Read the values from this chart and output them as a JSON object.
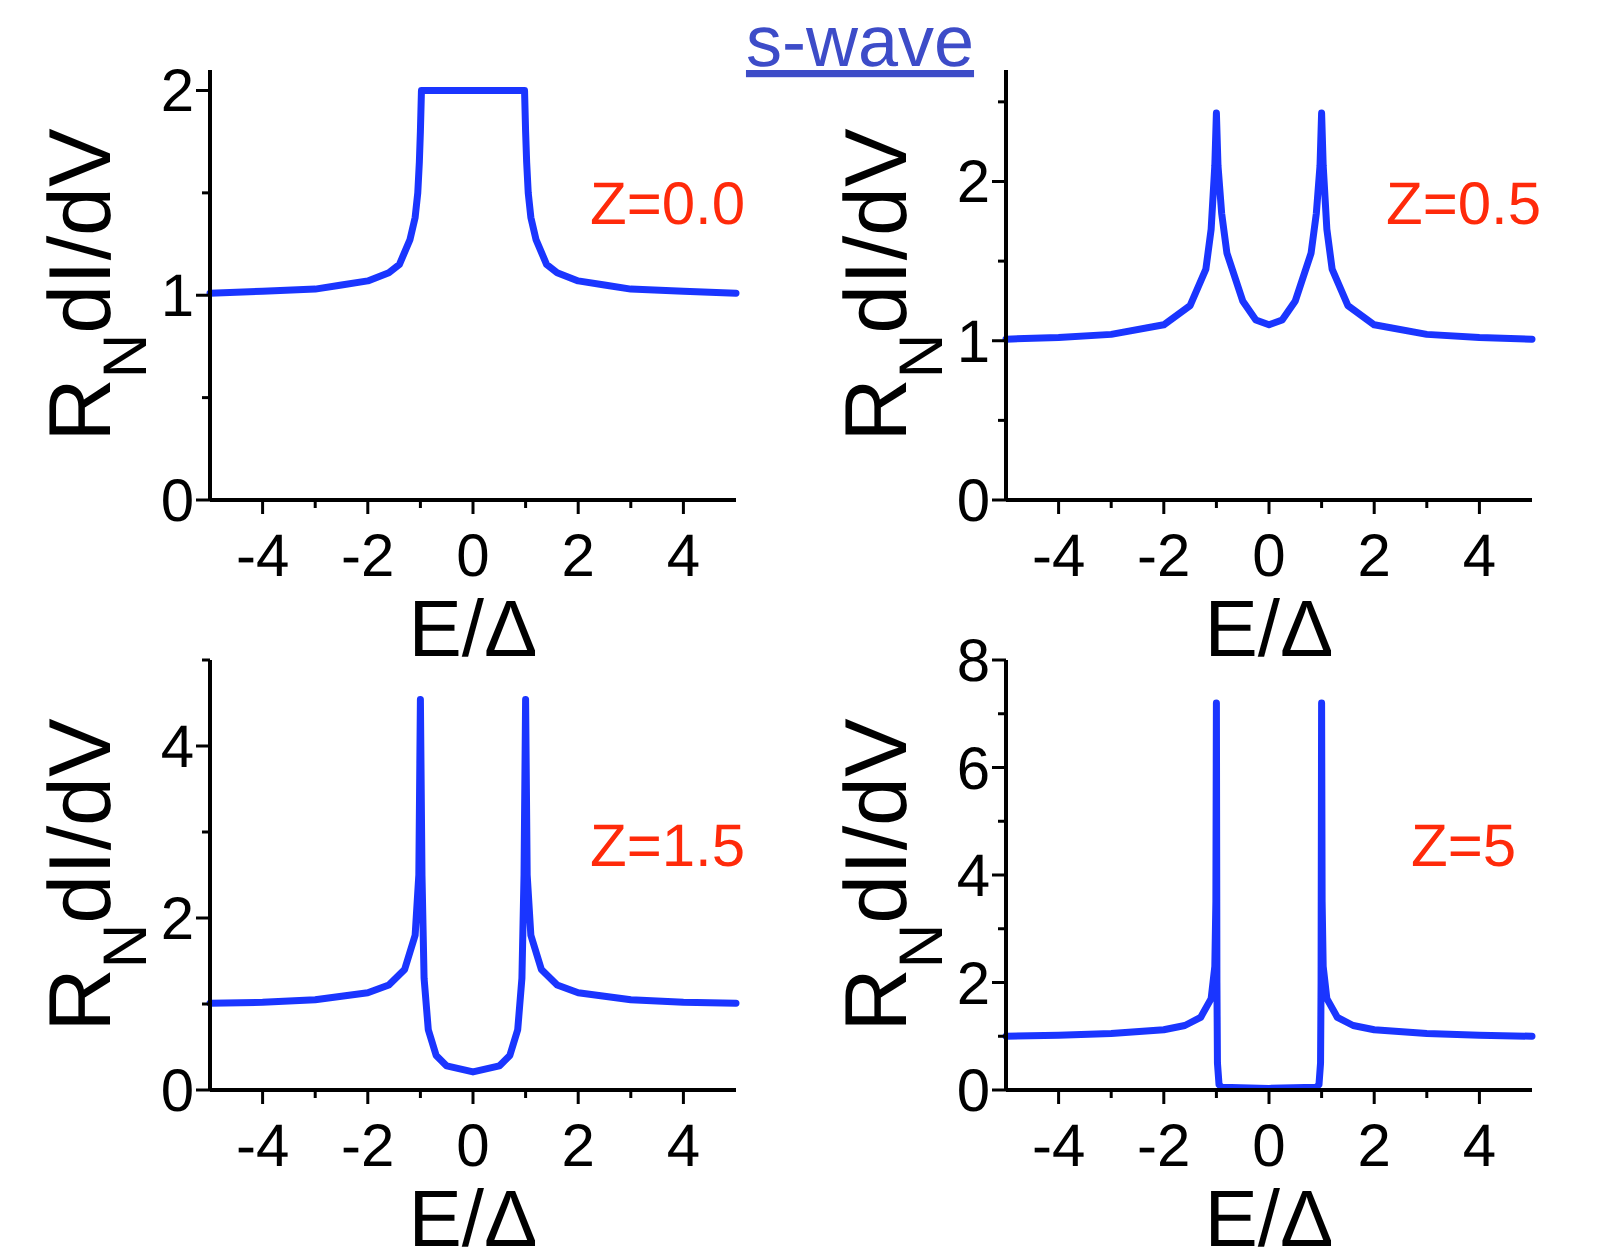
{
  "chart_data": [
    {
      "type": "line",
      "title": "s-wave",
      "xlabel": "E/Δ",
      "ylabel": "R$_{N}$dI/dV",
      "annotations": [
        "Z=0.0"
      ],
      "xlim": [
        -5,
        5
      ],
      "ylim": [
        0,
        2.1
      ],
      "xticks": [
        -4,
        {
          "value": -3,
          "label": null
        },
        -2,
        {
          "value": -1,
          "label": null
        },
        0,
        {
          "value": 1,
          "label": null
        },
        2,
        {
          "value": 3,
          "label": null
        },
        4
      ],
      "yticks": [
        0,
        {
          "value": 0.5,
          "label": null
        },
        1,
        {
          "value": 1.5,
          "label": null
        },
        2
      ],
      "x": [
        -5,
        -4,
        -3,
        -2.5,
        -2,
        -1.6,
        -1.4,
        -1.2,
        -1.1,
        -1.05,
        -1.02,
        -1,
        -0.98,
        0,
        0.98,
        1,
        1.02,
        1.05,
        1.1,
        1.2,
        1.4,
        1.6,
        2,
        2.5,
        3,
        4,
        5
      ],
      "series": [
        {
          "color": "#1a35ff",
          "values": [
            1.01,
            1.02,
            1.03,
            1.05,
            1.07,
            1.11,
            1.15,
            1.27,
            1.38,
            1.5,
            1.65,
            1.8,
            2,
            2,
            2,
            1.8,
            1.65,
            1.5,
            1.38,
            1.27,
            1.15,
            1.11,
            1.07,
            1.05,
            1.03,
            1.02,
            1.01
          ]
        }
      ]
    },
    {
      "type": "line",
      "xlabel": "E/Δ",
      "ylabel": "R$_{N}$dI/dV",
      "annotations": [
        "Z=0.5"
      ],
      "xlim": [
        -5,
        5
      ],
      "ylim": [
        0,
        2.7
      ],
      "xticks": [
        -4,
        {
          "value": -3,
          "label": null
        },
        -2,
        {
          "value": -1,
          "label": null
        },
        0,
        {
          "value": 1,
          "label": null
        },
        2,
        {
          "value": 3,
          "label": null
        },
        4
      ],
      "yticks": [
        0,
        {
          "value": 0.5,
          "label": null
        },
        1,
        {
          "value": 1.5,
          "label": null
        },
        2,
        {
          "value": 2.5,
          "label": null
        }
      ],
      "x": [
        -5,
        -4,
        -3,
        -2,
        -1.5,
        -1.2,
        -1.1,
        -1.03,
        -1,
        -0.97,
        -0.9,
        -0.8,
        -0.5,
        -0.25,
        0,
        0.25,
        0.5,
        0.8,
        0.9,
        0.97,
        1,
        1.03,
        1.1,
        1.2,
        1.5,
        2,
        3,
        4,
        5
      ],
      "series": [
        {
          "color": "#1a35ff",
          "values": [
            1.01,
            1.02,
            1.04,
            1.1,
            1.22,
            1.45,
            1.7,
            2.1,
            2.43,
            2.1,
            1.8,
            1.55,
            1.25,
            1.13,
            1.1,
            1.13,
            1.25,
            1.55,
            1.8,
            2.1,
            2.43,
            2.1,
            1.7,
            1.45,
            1.22,
            1.1,
            1.04,
            1.02,
            1.01
          ]
        }
      ]
    },
    {
      "type": "line",
      "xlabel": "E/Δ",
      "ylabel": "R$_{N}$dI/dV",
      "annotations": [
        "Z=1.5"
      ],
      "xlim": [
        -5,
        5
      ],
      "ylim": [
        0,
        5
      ],
      "xticks": [
        -4,
        {
          "value": -3,
          "label": null
        },
        -2,
        {
          "value": -1,
          "label": null
        },
        0,
        {
          "value": 1,
          "label": null
        },
        2,
        {
          "value": 3,
          "label": null
        },
        4
      ],
      "yticks": [
        0,
        {
          "value": 1,
          "label": null
        },
        2,
        {
          "value": 3,
          "label": null
        },
        4,
        {
          "value": 5,
          "label": null
        }
      ],
      "x": [
        -5,
        -4,
        -3,
        -2,
        -1.6,
        -1.3,
        -1.1,
        -1.03,
        -1,
        -0.97,
        -0.93,
        -0.85,
        -0.7,
        -0.5,
        0,
        0.5,
        0.7,
        0.85,
        0.93,
        0.97,
        1,
        1.03,
        1.1,
        1.3,
        1.6,
        2,
        3,
        4,
        5
      ],
      "series": [
        {
          "color": "#1a35ff",
          "values": [
            1.01,
            1.02,
            1.05,
            1.13,
            1.22,
            1.4,
            1.8,
            2.5,
            4.54,
            2.5,
            1.3,
            0.7,
            0.4,
            0.28,
            0.21,
            0.28,
            0.4,
            0.7,
            1.3,
            2.5,
            4.54,
            2.5,
            1.8,
            1.4,
            1.22,
            1.13,
            1.05,
            1.02,
            1.01
          ]
        }
      ]
    },
    {
      "type": "line",
      "xlabel": "E/Δ",
      "ylabel": "R$_{N}$dI/dV",
      "annotations": [
        "Z=5"
      ],
      "xlim": [
        -5,
        5
      ],
      "ylim": [
        0,
        8
      ],
      "xticks": [
        -4,
        {
          "value": -3,
          "label": null
        },
        -2,
        {
          "value": -1,
          "label": null
        },
        0,
        {
          "value": 1,
          "label": null
        },
        2,
        {
          "value": 3,
          "label": null
        },
        4
      ],
      "yticks": [
        0,
        {
          "value": 1,
          "label": null
        },
        2,
        {
          "value": 3,
          "label": null
        },
        4,
        {
          "value": 5,
          "label": null
        },
        6,
        {
          "value": 7,
          "label": null
        },
        8
      ],
      "x": [
        -5,
        -4,
        -3,
        -2,
        -1.6,
        -1.3,
        -1.1,
        -1.03,
        -1.01,
        -1,
        -0.99,
        -0.98,
        -0.95,
        -0.9,
        0,
        0.9,
        0.95,
        0.98,
        0.99,
        1,
        1.01,
        1.03,
        1.1,
        1.3,
        1.6,
        2,
        3,
        4,
        5
      ],
      "series": [
        {
          "color": "#1a35ff",
          "values": [
            1.0,
            1.02,
            1.05,
            1.12,
            1.2,
            1.35,
            1.7,
            2.3,
            3.5,
            7.2,
            2,
            0.5,
            0.1,
            0.05,
            0.03,
            0.05,
            0.1,
            0.5,
            2,
            7.2,
            3.5,
            2.3,
            1.7,
            1.35,
            1.2,
            1.12,
            1.05,
            1.02,
            1.0
          ]
        }
      ]
    }
  ]
}
